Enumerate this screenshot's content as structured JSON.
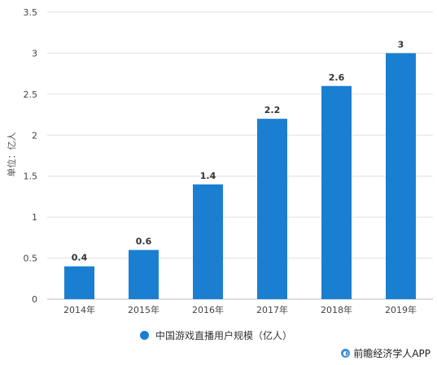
{
  "chart_data": {
    "type": "bar",
    "categories": [
      "2014年",
      "2015年",
      "2016年",
      "2017年",
      "2018年",
      "2019年"
    ],
    "series": [
      {
        "name": "中国游戏直播用户规模（亿人）",
        "values": [
          0.4,
          0.6,
          1.4,
          2.2,
          2.6,
          3
        ]
      }
    ],
    "data_labels": [
      "0.4",
      "0.6",
      "1.4",
      "2.2",
      "2.6",
      "3"
    ],
    "yticks": [
      "0",
      "0.5",
      "1",
      "1.5",
      "2",
      "2.5",
      "3",
      "3.5"
    ],
    "ylabel": "单位：亿人",
    "xlabel": "",
    "ylim": [
      0,
      3.5
    ],
    "grid": true,
    "legend_position": "bottom-center",
    "bar_color": "#1b7fd1",
    "grid_color": "#e0e0e0"
  },
  "source": {
    "icon": "circle-logo-icon",
    "text": "前瞻经济学人APP"
  }
}
